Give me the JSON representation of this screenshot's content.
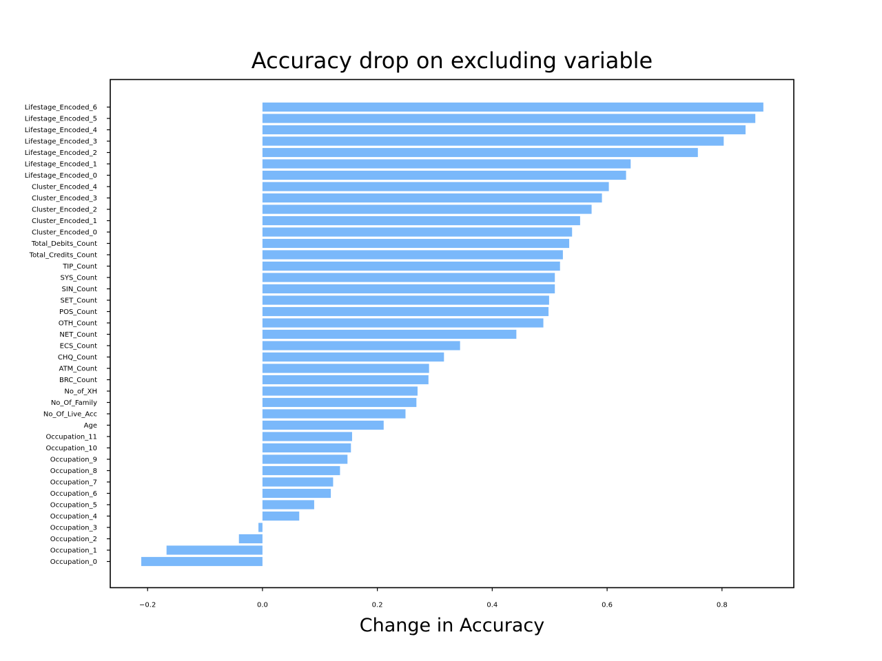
{
  "chart_data": {
    "type": "bar",
    "orientation": "horizontal",
    "title": "Accuracy drop on excluding variable",
    "xlabel": "Change in Accuracy",
    "ylabel": "",
    "xlim": [
      -0.265,
      0.925
    ],
    "xticks": [
      -0.2,
      0.0,
      0.2,
      0.4,
      0.6,
      0.8
    ],
    "xtick_labels": [
      "−0.2",
      "0.0",
      "0.2",
      "0.4",
      "0.6",
      "0.8"
    ],
    "grid": false,
    "bar_color": "#7ab8fa",
    "categories": [
      "Lifestage_Encoded_6",
      "Lifestage_Encoded_5",
      "Lifestage_Encoded_4",
      "Lifestage_Encoded_3",
      "Lifestage_Encoded_2",
      "Lifestage_Encoded_1",
      "Lifestage_Encoded_0",
      "Cluster_Encoded_4",
      "Cluster_Encoded_3",
      "Cluster_Encoded_2",
      "Cluster_Encoded_1",
      "Cluster_Encoded_0",
      "Total_Debits_Count",
      "Total_Credits_Count",
      "TIP_Count",
      "SYS_Count",
      "SIN_Count",
      "SET_Count",
      "POS_Count",
      "OTH_Count",
      "NET_Count",
      "ECS_Count",
      "CHQ_Count",
      "ATM_Count",
      "BRC_Count",
      "No_of_XH",
      "No_Of_Family",
      "No_Of_Live_Acc",
      "Age",
      "Occupation_11",
      "Occupation_10",
      "Occupation_9",
      "Occupation_8",
      "Occupation_7",
      "Occupation_6",
      "Occupation_5",
      "Occupation_4",
      "Occupation_3",
      "Occupation_2",
      "Occupation_1",
      "Occupation_0"
    ],
    "values": [
      0.872,
      0.858,
      0.841,
      0.803,
      0.758,
      0.641,
      0.633,
      0.603,
      0.591,
      0.573,
      0.553,
      0.539,
      0.534,
      0.523,
      0.518,
      0.509,
      0.509,
      0.499,
      0.498,
      0.489,
      0.442,
      0.344,
      0.316,
      0.29,
      0.289,
      0.27,
      0.268,
      0.249,
      0.211,
      0.156,
      0.154,
      0.148,
      0.135,
      0.123,
      0.119,
      0.09,
      0.064,
      -0.007,
      -0.041,
      -0.167,
      -0.211
    ]
  }
}
